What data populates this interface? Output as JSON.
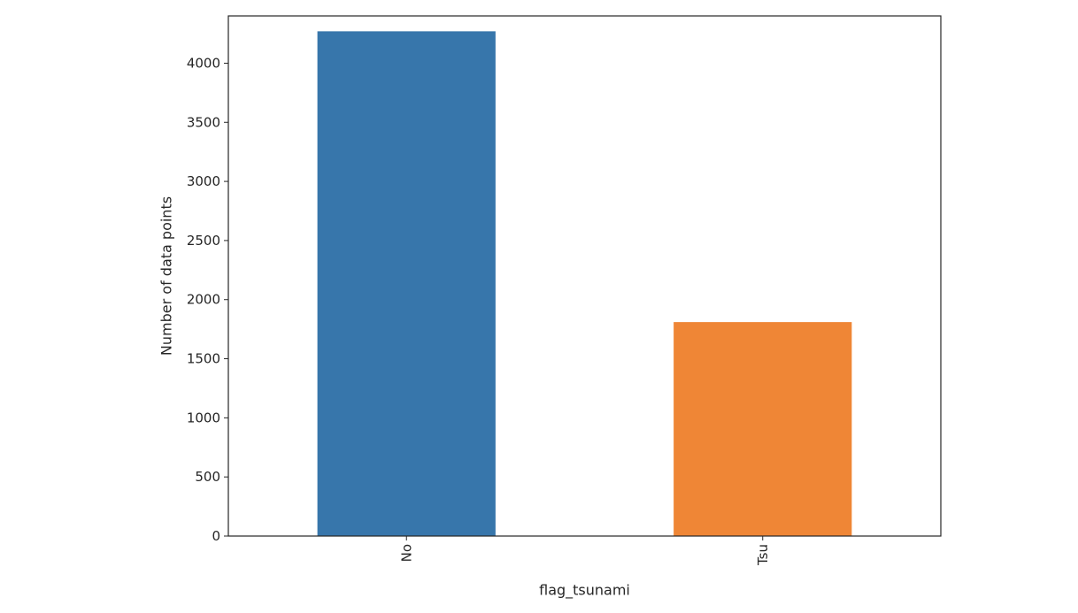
{
  "chart_data": {
    "type": "bar",
    "categories": [
      "No",
      "Tsu"
    ],
    "values": [
      4270,
      1810
    ],
    "colors": [
      "#3776ab",
      "#ef8636"
    ],
    "xlabel": "flag_tsunami",
    "ylabel": "Number of data points",
    "ylim": [
      0,
      4400
    ],
    "yticks": [
      {
        "value": 0,
        "label": "0"
      },
      {
        "value": 500,
        "label": "500"
      },
      {
        "value": 1000,
        "label": "1000"
      },
      {
        "value": 1500,
        "label": "1500"
      },
      {
        "value": 2000,
        "label": "2000"
      },
      {
        "value": 2500,
        "label": "2500"
      },
      {
        "value": 3000,
        "label": "3000"
      },
      {
        "value": 3500,
        "label": "3500"
      },
      {
        "value": 4000,
        "label": "4000"
      }
    ],
    "grid": false,
    "legend": "none"
  }
}
